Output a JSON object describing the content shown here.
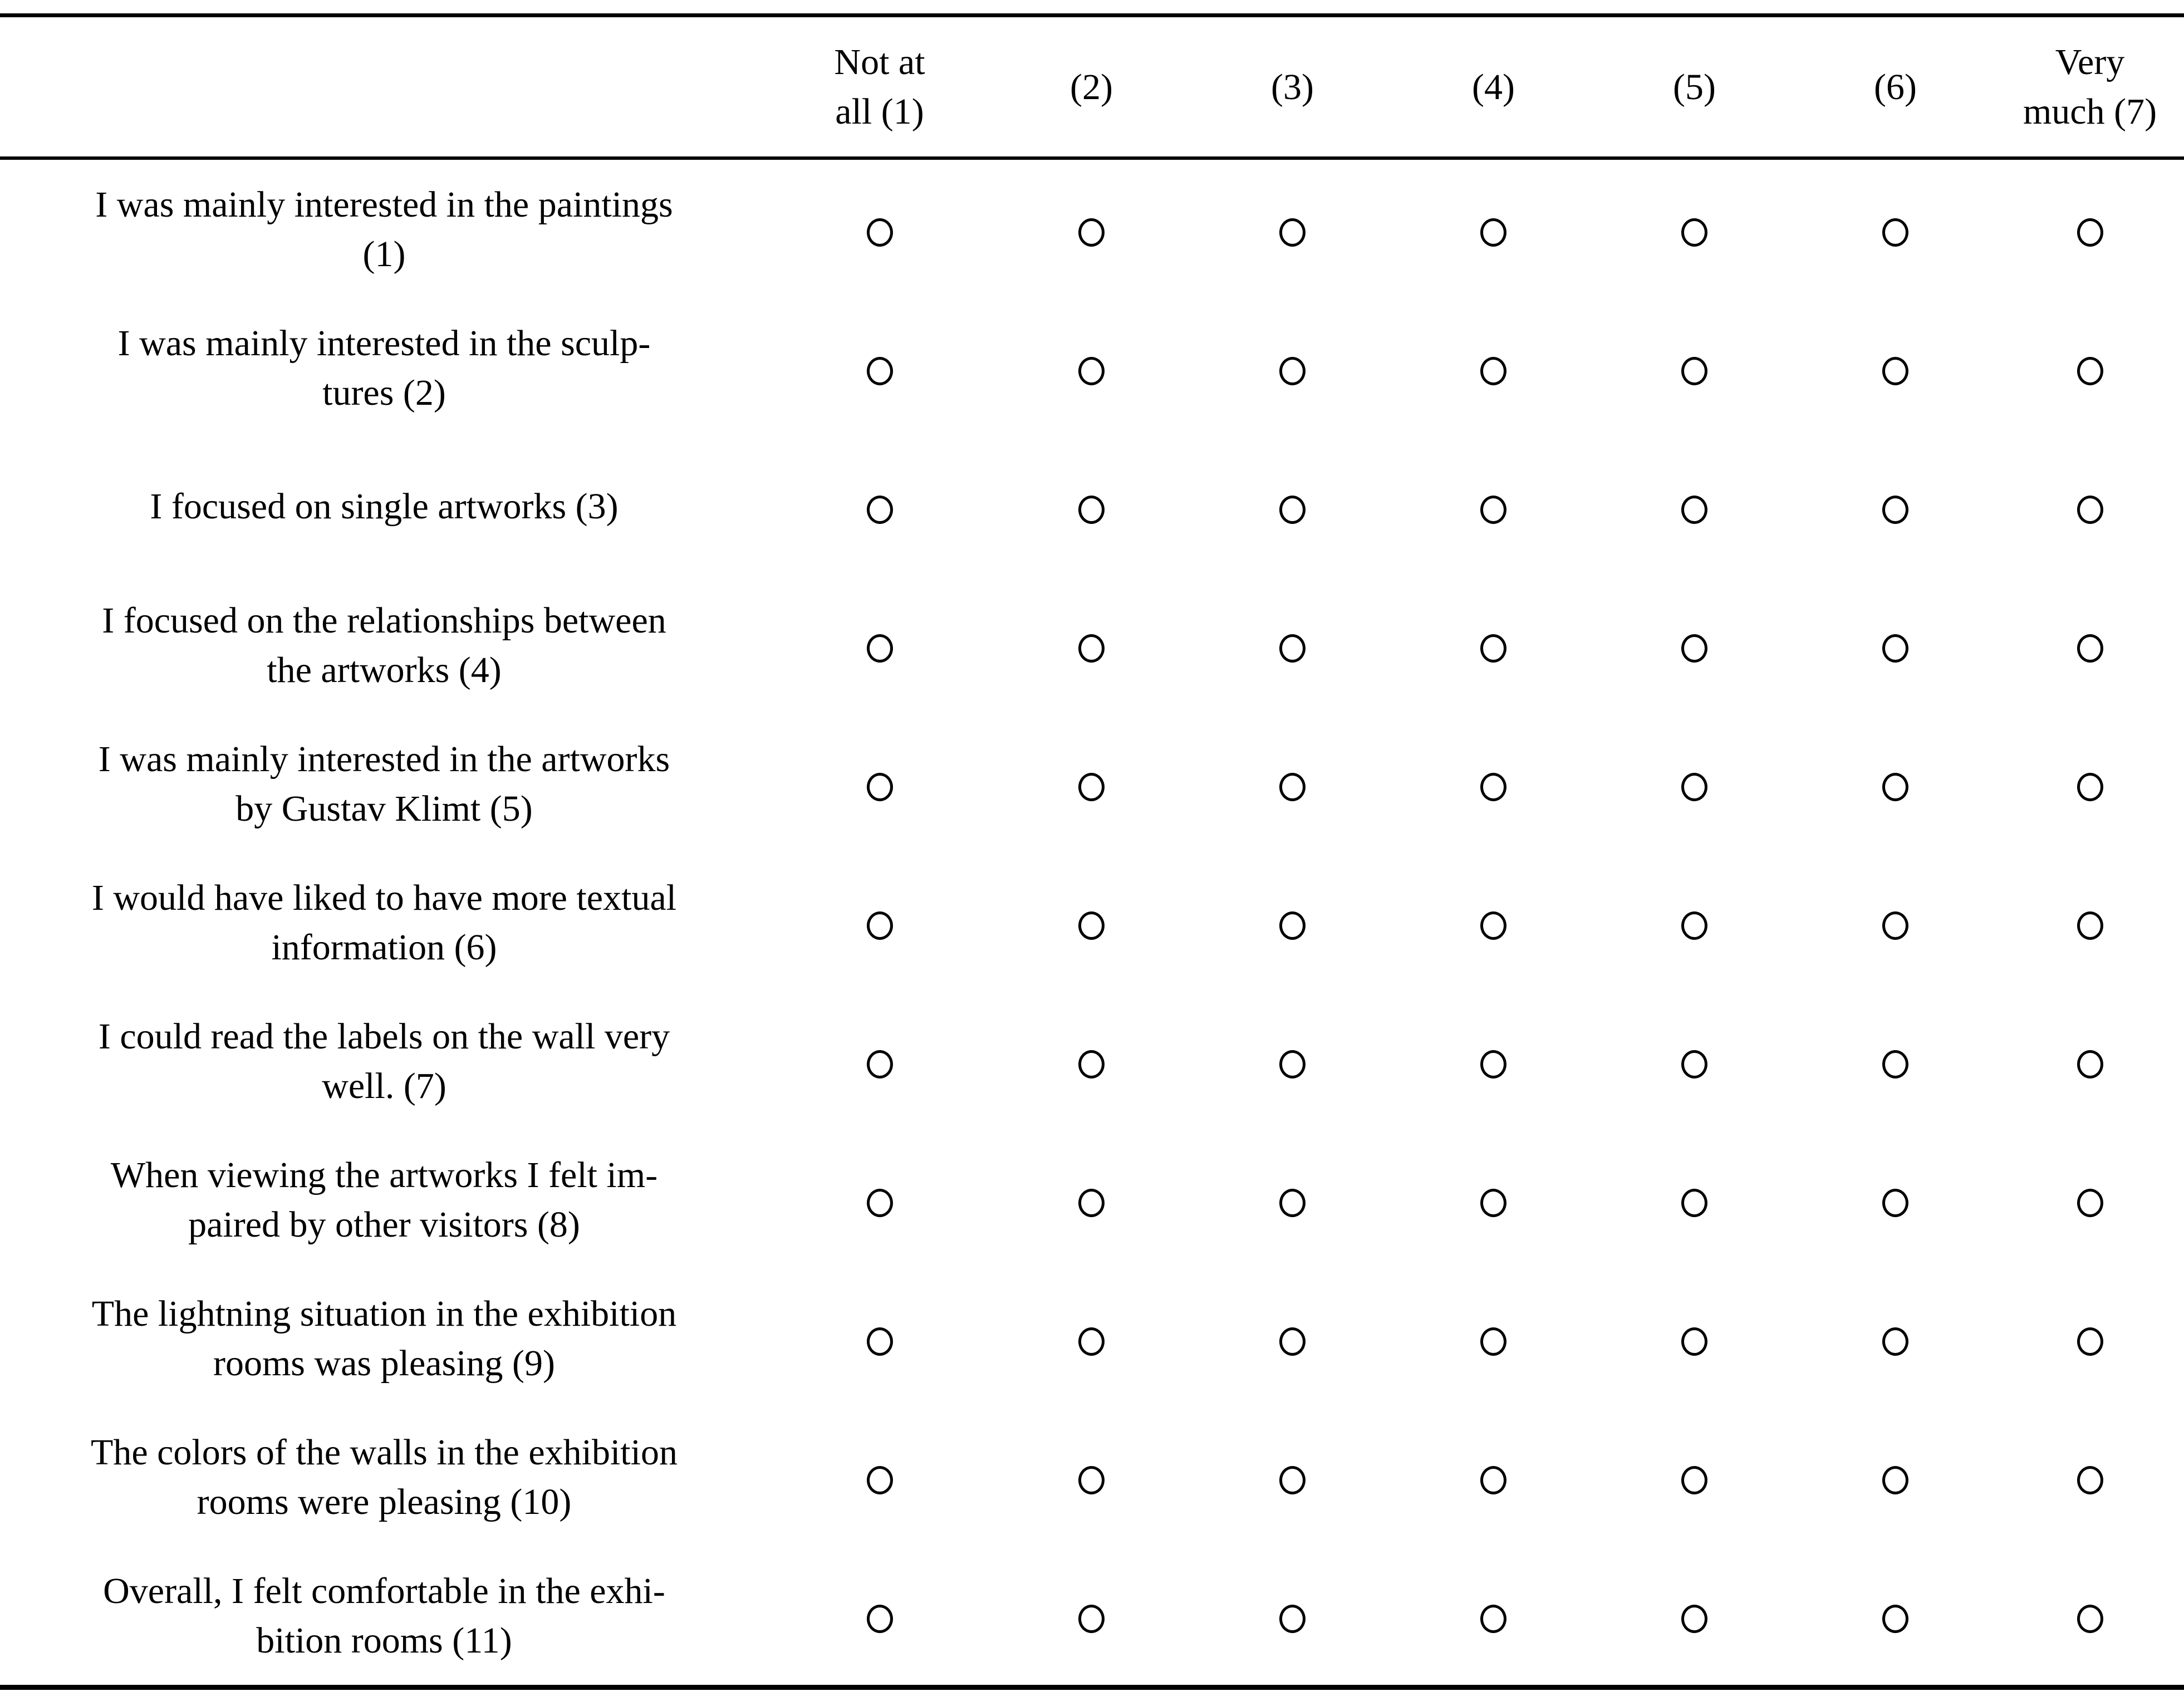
{
  "table": {
    "columns": [
      {
        "label": "Not at\nall (1)"
      },
      {
        "label": "(2)"
      },
      {
        "label": "(3)"
      },
      {
        "label": "(4)"
      },
      {
        "label": "(5)"
      },
      {
        "label": "(6)"
      },
      {
        "label": "Very\nmuch (7)"
      }
    ],
    "rows": [
      {
        "question": "I was mainly interested in the paintings\n(1)",
        "selected": null
      },
      {
        "question": "I was mainly interested in the sculp-\ntures (2)",
        "selected": null
      },
      {
        "question": "I focused on single artworks (3)",
        "selected": null
      },
      {
        "question": "I focused on the relationships between\nthe artworks (4)",
        "selected": null
      },
      {
        "question": "I was mainly interested in the artworks\nby Gustav Klimt (5)",
        "selected": null
      },
      {
        "question": "I would have liked to have more textual\ninformation (6)",
        "selected": null
      },
      {
        "question": "I could read the labels on the wall very\nwell. (7)",
        "selected": null
      },
      {
        "question": "When viewing the artworks I felt im-\npaired by other visitors (8)",
        "selected": null
      },
      {
        "question": "The lightning situation in the exhibition\nrooms was pleasing (9)",
        "selected": null
      },
      {
        "question": "The colors of the walls in the exhibition\nrooms were pleasing (10)",
        "selected": null
      },
      {
        "question": "Overall, I felt comfortable in the exhi-\nbition rooms (11)",
        "selected": null
      }
    ],
    "colors": {
      "text": "#000000",
      "background": "#ffffff",
      "rule": "#000000"
    }
  }
}
